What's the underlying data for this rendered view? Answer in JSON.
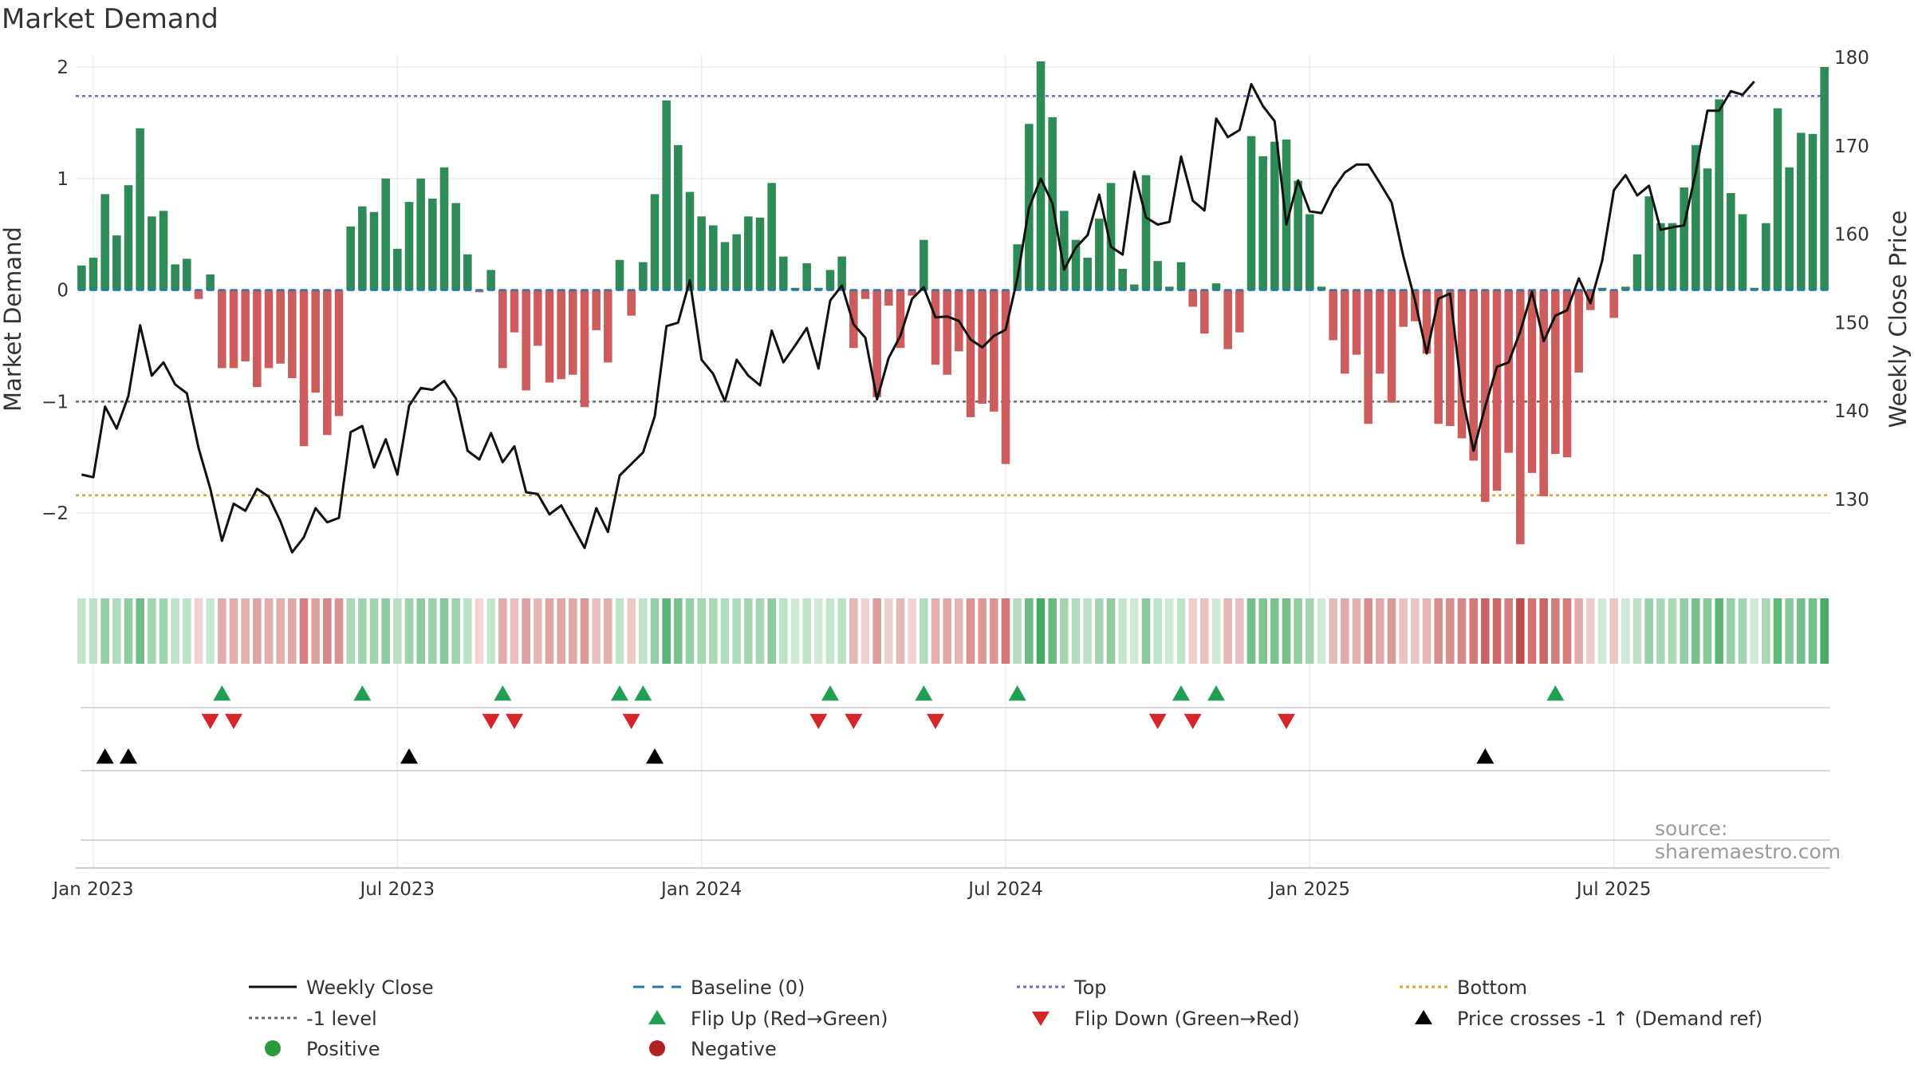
{
  "title": "Market Demand",
  "source": "source: sharemaestro.com",
  "colors": {
    "positive_bar": "#2e8b57",
    "negative_bar": "#cd5c5c",
    "price_line": "#111111",
    "baseline": "#1f77b4",
    "top": "#6a6ad8",
    "bottom": "#e0a020",
    "minus_one": "#666666",
    "flip_up": "#20a050",
    "flip_down": "#d62728",
    "cross": "#000000",
    "positive_dot": "#2a9a3a",
    "negative_dot": "#b22222"
  },
  "chart_data": {
    "type": "bar+line",
    "title": "Market Demand",
    "left_axis": {
      "label": "Market Demand",
      "ticks": [
        "−2",
        "−1",
        "0",
        "1",
        "2"
      ],
      "tick_values": [
        -2,
        -1,
        0,
        1,
        2
      ],
      "range": [
        -2.55,
        2.1
      ]
    },
    "right_axis": {
      "label": "Weekly Close Price",
      "ticks": [
        "130",
        "140",
        "150",
        "160",
        "170",
        "180"
      ],
      "tick_values": [
        130,
        140,
        150,
        160,
        170,
        180
      ],
      "range": [
        121.5,
        180.2
      ]
    },
    "x_axis": {
      "ticks": [
        "Jan 2023",
        "Jul 2023",
        "Jan 2024",
        "Jul 2024",
        "Jan 2025",
        "Jul 2025"
      ],
      "tick_weeks": [
        1,
        27,
        53,
        79,
        105,
        131
      ]
    },
    "reference_lines": {
      "baseline": 0,
      "top": 1.74,
      "bottom": -1.84,
      "minus_one": -1
    },
    "demand": [
      0.22,
      0.29,
      0.86,
      0.49,
      0.94,
      1.45,
      0.66,
      0.71,
      0.23,
      0.28,
      -0.08,
      0.14,
      -0.7,
      -0.7,
      -0.64,
      -0.87,
      -0.7,
      -0.66,
      -0.79,
      -1.4,
      -0.92,
      -1.3,
      -1.13,
      0.57,
      0.75,
      0.7,
      1.0,
      0.37,
      0.79,
      1.0,
      0.82,
      1.1,
      0.78,
      0.32,
      -0.02,
      0.18,
      -0.7,
      -0.38,
      -0.9,
      -0.5,
      -0.83,
      -0.8,
      -0.76,
      -1.05,
      -0.36,
      -0.65,
      0.27,
      -0.23,
      0.25,
      0.86,
      1.7,
      1.3,
      0.88,
      0.66,
      0.58,
      0.43,
      0.5,
      0.66,
      0.65,
      0.96,
      0.3,
      0.02,
      0.24,
      0.02,
      0.18,
      0.3,
      -0.52,
      -0.08,
      -0.96,
      -0.14,
      -0.52,
      -0.05,
      0.45,
      -0.67,
      -0.76,
      -0.55,
      -1.14,
      -1.02,
      -1.09,
      -1.56,
      0.41,
      1.49,
      2.05,
      1.55,
      0.71,
      0.45,
      0.29,
      0.64,
      0.96,
      0.19,
      0.05,
      1.03,
      0.26,
      0.03,
      0.25,
      -0.15,
      -0.39,
      0.06,
      -0.53,
      -0.38,
      1.38,
      1.2,
      1.33,
      1.35,
      0.98,
      0.68,
      0.03,
      -0.45,
      -0.75,
      -0.58,
      -1.2,
      -0.75,
      -1.01,
      -0.33,
      -0.28,
      -0.57,
      -1.2,
      -1.22,
      -1.33,
      -1.53,
      -1.9,
      -1.8,
      -1.46,
      -2.28,
      -1.64,
      -1.85,
      -1.47,
      -1.5,
      -0.74,
      -0.18,
      0.02,
      -0.25,
      0.03,
      0.32,
      0.84,
      0.6,
      0.6,
      0.92,
      1.3,
      1.09,
      1.71,
      0.87,
      0.68,
      0.02,
      0.6,
      1.63,
      1.1,
      1.41,
      1.4,
      2.0
    ],
    "weekly_close": [
      132.8,
      132.5,
      140.5,
      138.0,
      141.7,
      149.7,
      144.0,
      145.5,
      143.0,
      142.0,
      135.8,
      131.2,
      125.3,
      129.5,
      128.7,
      131.2,
      130.3,
      127.5,
      124.0,
      125.7,
      129.0,
      127.4,
      127.9,
      137.6,
      138.3,
      133.6,
      136.8,
      132.8,
      140.6,
      142.6,
      142.4,
      143.4,
      141.4,
      135.5,
      134.5,
      137.5,
      134.2,
      136.0,
      130.8,
      130.6,
      128.3,
      129.3,
      126.9,
      124.5,
      129.0,
      126.3,
      132.7,
      134.0,
      135.3,
      139.4,
      149.6,
      150.0,
      154.8,
      145.8,
      144.2,
      141.1,
      145.8,
      144.0,
      142.9,
      149.1,
      145.5,
      147.4,
      149.4,
      144.8,
      152.5,
      154.2,
      149.8,
      148.3,
      141.3,
      146.0,
      148.5,
      152.7,
      154.0,
      150.6,
      150.7,
      150.2,
      148.1,
      147.2,
      148.5,
      149.2,
      155.0,
      163.0,
      166.3,
      163.5,
      156.0,
      158.5,
      159.9,
      164.5,
      158.6,
      157.7,
      167.1,
      161.9,
      161.1,
      161.4,
      168.8,
      163.8,
      162.7,
      173.1,
      171.0,
      171.8,
      177.0,
      174.5,
      172.8,
      161.1,
      166.1,
      162.6,
      162.4,
      165.1,
      167.0,
      167.9,
      167.9,
      165.8,
      163.6,
      157.5,
      152.5,
      146.5,
      152.7,
      153.3,
      142.0,
      135.5,
      140.5,
      145.0,
      145.5,
      149.0,
      153.5,
      147.9,
      150.8,
      151.4,
      155.0,
      152.2,
      157.0,
      165.0,
      166.7,
      164.4,
      165.5,
      160.5,
      160.8,
      161.0,
      167.0,
      174.0,
      174.0,
      176.2,
      175.8,
      177.3
    ],
    "flip_up_weeks": [
      12,
      24,
      36,
      46,
      48,
      64,
      72,
      80,
      94,
      97,
      126
    ],
    "flip_down_weeks": [
      11,
      13,
      35,
      37,
      47,
      63,
      66,
      73,
      92,
      95,
      103
    ],
    "price_cross_weeks": [
      2,
      4,
      28,
      49,
      120
    ],
    "legend": [
      {
        "label": "Weekly Close",
        "symbol": "solid-line"
      },
      {
        "label": "Baseline (0)",
        "symbol": "dashed-line"
      },
      {
        "label": "Top",
        "symbol": "dotted-line"
      },
      {
        "label": "Bottom",
        "symbol": "dotted-line"
      },
      {
        "label": "-1 level",
        "symbol": "dotted-line"
      },
      {
        "label": "Flip Up (Red→Green)",
        "symbol": "triangle-up"
      },
      {
        "label": "Flip Down (Green→Red)",
        "symbol": "triangle-down"
      },
      {
        "label": "Price crosses -1 ↑ (Demand ref)",
        "symbol": "triangle-up"
      },
      {
        "label": "Positive",
        "symbol": "circle"
      },
      {
        "label": "Negative",
        "symbol": "circle"
      }
    ]
  }
}
